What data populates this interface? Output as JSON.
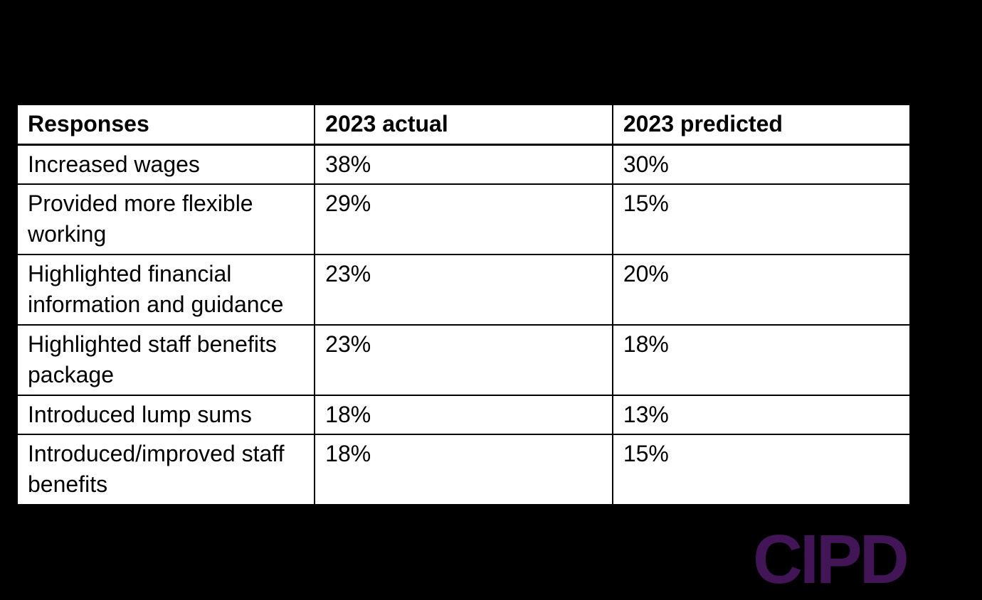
{
  "page": {
    "background_color": "#000000",
    "table_background_color": "#ffffff",
    "border_color": "#000000",
    "text_color": "#000000"
  },
  "chart_data": {
    "type": "table",
    "columns": [
      "Responses",
      "2023 actual",
      "2023 predicted"
    ],
    "rows": [
      [
        "Increased wages",
        "38%",
        "30%"
      ],
      [
        "Provided more flexible working",
        "29%",
        "15%"
      ],
      [
        "Highlighted financial information and guidance",
        "23%",
        "20%"
      ],
      [
        "Highlighted staff benefits package",
        "23%",
        "18%"
      ],
      [
        "Introduced lump sums",
        "18%",
        "13%"
      ],
      [
        "Introduced/improved staff benefits",
        "18%",
        "15%"
      ]
    ]
  },
  "logo": {
    "text": "CIPD",
    "color": "#411556"
  }
}
